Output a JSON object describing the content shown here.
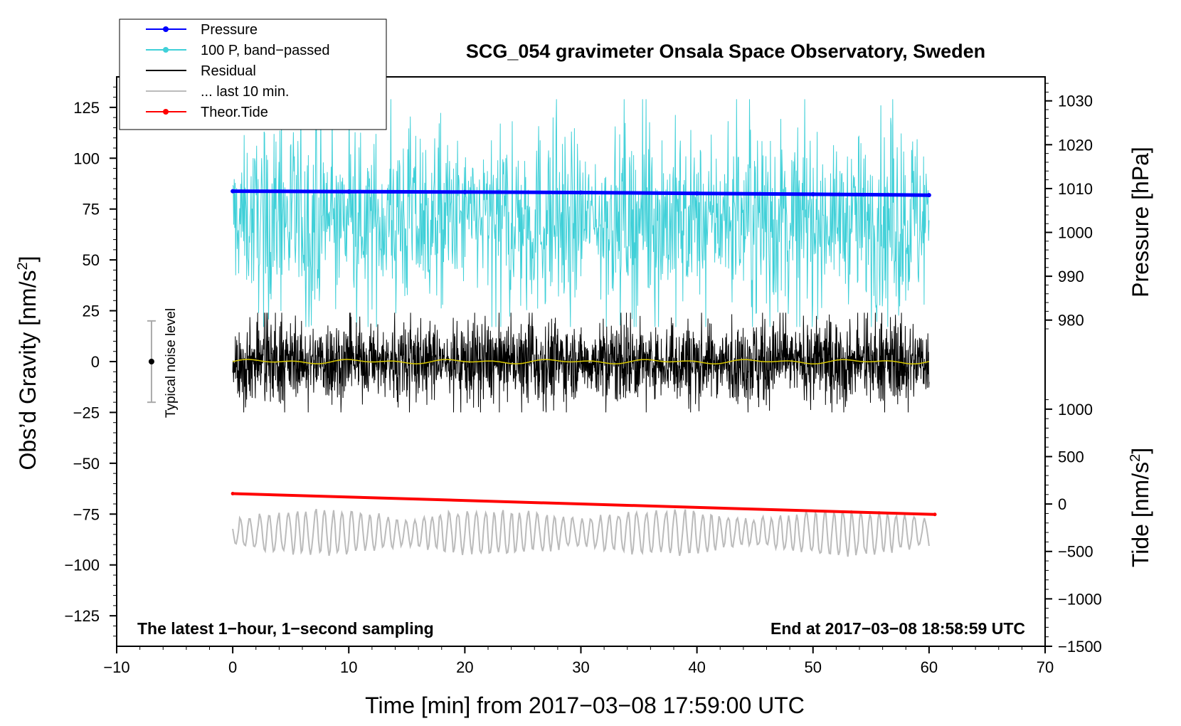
{
  "chart_data": {
    "type": "line",
    "title": "SCG_054 gravimeter Onsala Space Observatory, Sweden",
    "xlabel": "Time [min] from 2017−03−08 17:59:00 UTC",
    "ylabel_left_prefix": "Obs’d Gravity [nm/s",
    "ylabel_right_pressure": "Pressure [hPa]",
    "ylabel_right_tide_prefix": "Tide [nm/s",
    "superscript": "2",
    "label_suffix": "]",
    "xlim": [
      -10,
      70
    ],
    "ylim": [
      -140,
      140
    ],
    "x_ticks": [
      -10,
      0,
      10,
      20,
      30,
      40,
      50,
      60,
      70
    ],
    "x_tick_labels": [
      "−10",
      "0",
      "10",
      "20",
      "30",
      "40",
      "50",
      "60",
      "70"
    ],
    "y_ticks": [
      125,
      100,
      75,
      50,
      25,
      0,
      -25,
      -50,
      -75,
      -100,
      -125
    ],
    "y_tick_labels": [
      "125",
      "100",
      "75",
      "50",
      "25",
      "0",
      "−25",
      "−50",
      "−75",
      "−100",
      "−125"
    ],
    "pressure_axis": {
      "ticks": [
        1030,
        1020,
        1010,
        1000,
        990,
        980
      ],
      "tick_labels": [
        "1030",
        "1020",
        "1010",
        "1000",
        "990",
        "980"
      ],
      "maps_to_gravity": [
        [
          980,
          20.4
        ],
        [
          1030,
          128.2
        ]
      ]
    },
    "tide_axis": {
      "ticks": [
        1000,
        500,
        0,
        -500,
        -1000,
        -1500
      ],
      "tick_labels": [
        "1000",
        "500",
        "0",
        "−500",
        "−1000",
        "−1500"
      ],
      "maps_to_gravity": [
        [
          -1500,
          -140
        ],
        [
          1000,
          -23.4
        ]
      ]
    },
    "annotations": {
      "left": "The latest 1−hour, 1−second sampling",
      "right": "End at 2017−03−08 18:58:59 UTC",
      "noise": "Typical noise level"
    },
    "noise_bar": {
      "x": -7,
      "center": 0,
      "low": -20,
      "high": 20
    },
    "legend": [
      {
        "label": "Pressure",
        "color": "#0000ff",
        "marker": true
      },
      {
        "label": "100 P, band−passed",
        "color": "#40d0d8",
        "marker": true
      },
      {
        "label": "Residual",
        "color": "#000000",
        "marker": false
      },
      {
        "label": "... last 10 min.",
        "color": "#bbbbbb",
        "marker": false
      },
      {
        "label": "Theor.Tide",
        "color": "#ff0000",
        "marker": true
      }
    ],
    "series": [
      {
        "name": "Pressure",
        "color": "#0000ff",
        "axis": "pressure",
        "x": [
          0,
          10,
          20,
          30,
          40,
          50,
          60
        ],
        "y": [
          1009.4,
          1009.3,
          1009.2,
          1009.1,
          1008.9,
          1008.7,
          1008.5
        ]
      },
      {
        "name": "100 P, band−passed",
        "color": "#40d0d8",
        "axis": "gravity",
        "x_range": [
          0,
          60
        ],
        "center": 70,
        "amplitude": 20,
        "min": 17,
        "max": 129
      },
      {
        "name": "Residual",
        "color": "#000000",
        "axis": "gravity",
        "x_range": [
          0,
          60
        ],
        "center": 0,
        "amplitude": 9,
        "min": -25,
        "max": 24
      },
      {
        "name": "Residual smoothed",
        "color": "#d8c800",
        "axis": "gravity",
        "x_range": [
          0,
          60
        ],
        "center": 0,
        "amplitude": 1.2
      },
      {
        "name": "Theor.Tide",
        "color": "#ff0000",
        "axis": "tide",
        "x": [
          0,
          60.5
        ],
        "y": [
          110,
          -110
        ]
      },
      {
        "name": "... last 10 min.",
        "color": "#bbbbbb",
        "axis": "gravity",
        "x_range": [
          0,
          60
        ],
        "center": -84,
        "amplitude": 8,
        "min": -109,
        "max": -66
      }
    ]
  }
}
